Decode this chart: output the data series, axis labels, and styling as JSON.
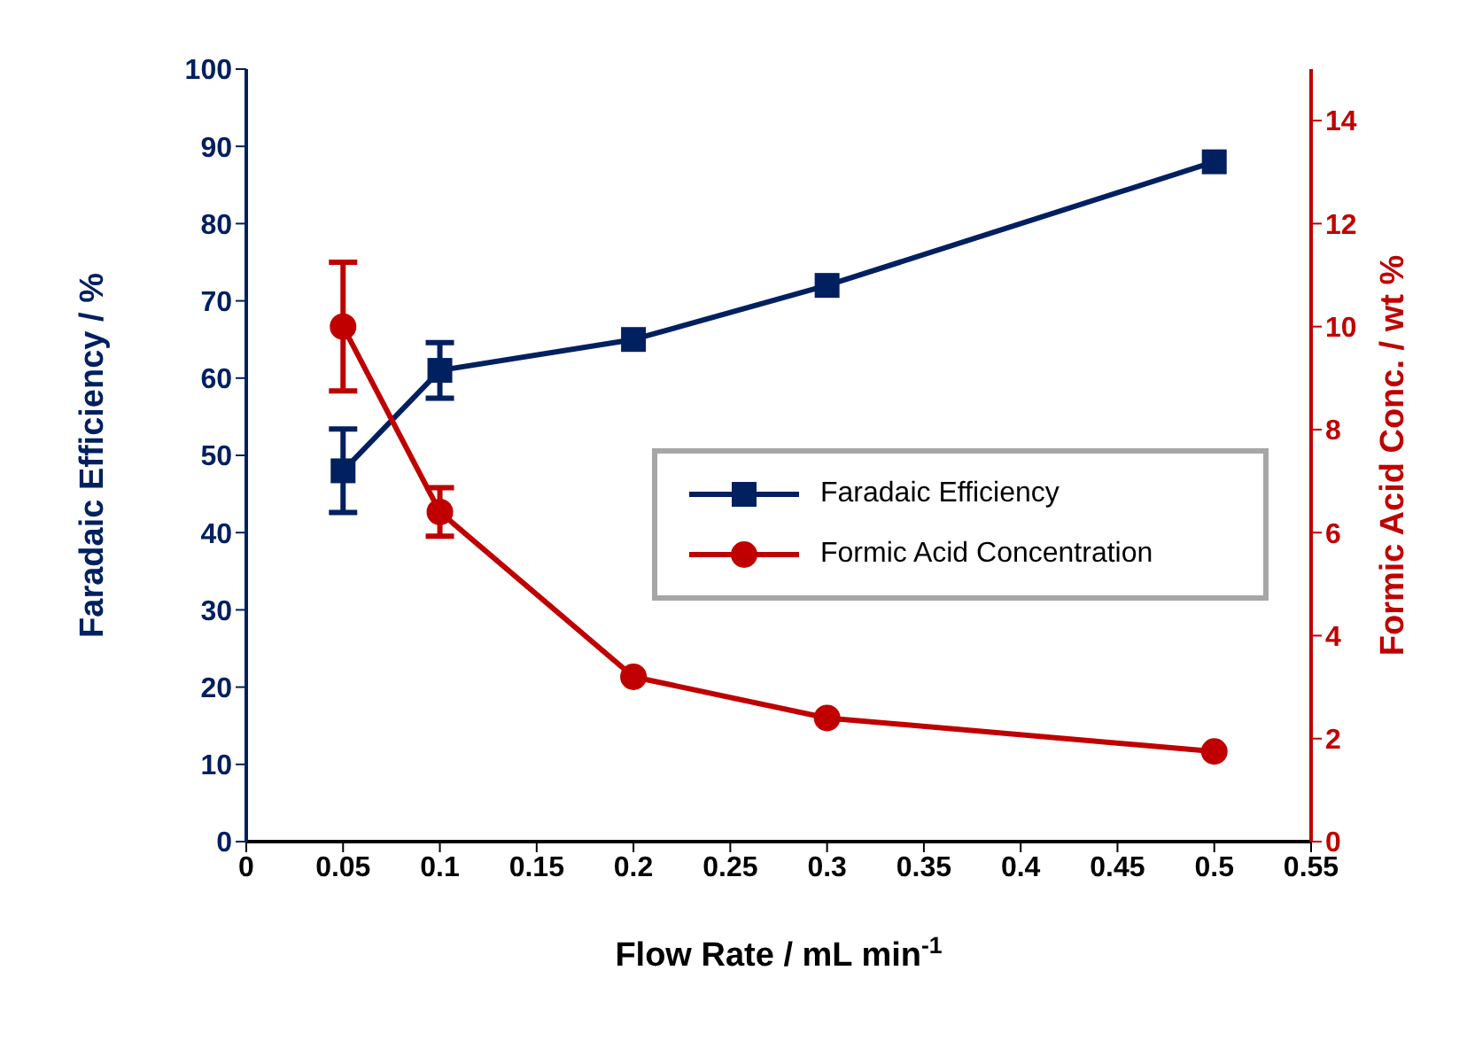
{
  "chart_data": {
    "type": "line",
    "xlabel": "Flow Rate / mL min$^{-1}$",
    "ylabel": "Faradaic Efficiency / %",
    "y2label": "Formic Acid Conc. / wt %",
    "x": [
      0.05,
      0.1,
      0.2,
      0.3,
      0.5
    ],
    "series": [
      {
        "name": "Faradaic Efficiency",
        "color": "#002060",
        "marker": "square",
        "values": [
          48,
          61,
          65,
          72,
          88
        ],
        "errors": [
          5.4,
          3.6,
          null,
          null,
          null
        ]
      },
      {
        "name": "Formic Acid Concentration",
        "color": "#c00000",
        "marker": "circle",
        "axis": "y2",
        "values": [
          10.0,
          6.4,
          3.2,
          2.4,
          1.75
        ],
        "errors": [
          1.25,
          0.47,
          null,
          null,
          null
        ]
      }
    ],
    "xlim": [
      0,
      0.55
    ],
    "xticks": [
      0,
      0.05,
      0.1,
      0.15,
      0.2,
      0.25,
      0.3,
      0.35,
      0.4,
      0.45,
      0.5,
      0.55
    ],
    "ylim": [
      0,
      100
    ],
    "yticks": [
      0,
      10,
      20,
      30,
      40,
      50,
      60,
      70,
      80,
      90,
      100
    ],
    "y2lim": [
      0,
      15
    ],
    "y2ticks": [
      0,
      2,
      4,
      6,
      8,
      10,
      12,
      14
    ],
    "legend": "right",
    "grid": false,
    "line_style": "solid"
  }
}
